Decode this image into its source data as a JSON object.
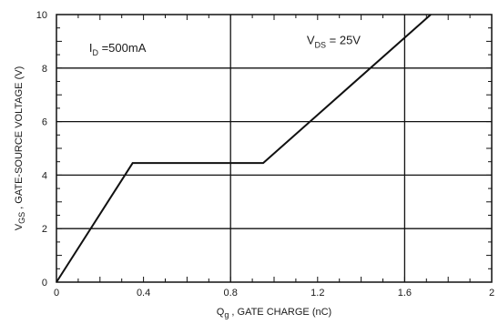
{
  "chart_data": {
    "type": "line",
    "xlabel": {
      "main": "Q",
      "sub": "g",
      "rest": " , GATE CHARGE (nC)"
    },
    "ylabel": {
      "main": "V",
      "sub": "GS",
      "rest": " , GATE-SOURCE VOLTAGE (V)"
    },
    "xlim": [
      0,
      2
    ],
    "ylim": [
      0,
      10
    ],
    "x_ticks": [
      "0",
      "0.4",
      "0.8",
      "1.2",
      "1.6",
      "2"
    ],
    "y_ticks": [
      "0",
      "2",
      "4",
      "6",
      "8",
      "10"
    ],
    "grid": true,
    "series": [
      {
        "x": [
          0,
          0.35,
          0.95,
          1.72
        ],
        "y": [
          0,
          4.45,
          4.45,
          10
        ]
      }
    ],
    "annotations": [
      {
        "main": "I",
        "sub": "D",
        "rest": " =500mA",
        "x": 0.15,
        "y": 8.6
      },
      {
        "main": "V",
        "sub": "DS",
        "rest": " = 25V",
        "x": 1.15,
        "y": 8.9
      }
    ],
    "line_color": "#111111",
    "grid_color": "#111111"
  }
}
